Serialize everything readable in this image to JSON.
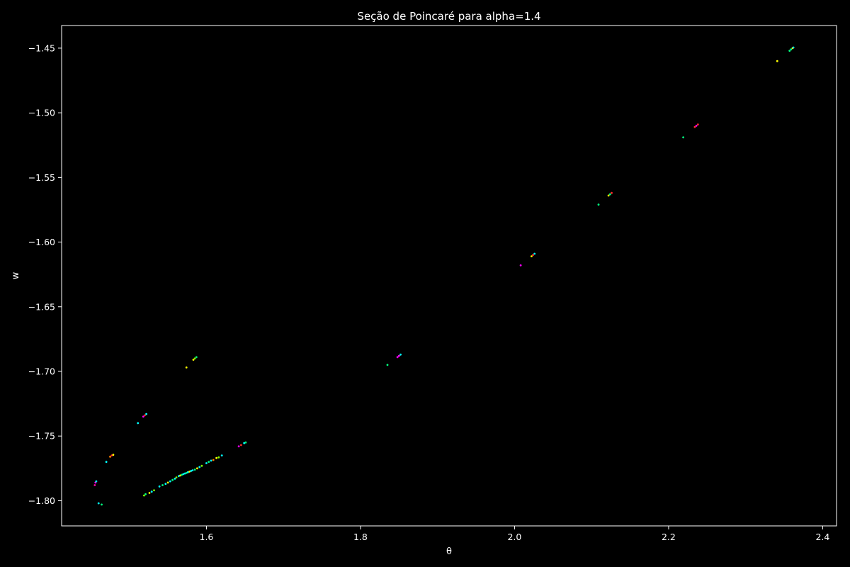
{
  "chart_data": {
    "type": "scatter",
    "title": "Seção de Poincaré para alpha=1.4",
    "xlabel": "θ",
    "ylabel": "w",
    "xlim": [
      1.412,
      2.418
    ],
    "ylim": [
      -1.8195,
      -1.4325
    ],
    "x_ticks": [
      1.6,
      1.8,
      2.0,
      2.2,
      2.4
    ],
    "x_tick_labels": [
      "1.6",
      "1.8",
      "2.0",
      "2.2",
      "2.4"
    ],
    "y_ticks": [
      -1.8,
      -1.75,
      -1.7,
      -1.65,
      -1.6,
      -1.55,
      -1.5,
      -1.45
    ],
    "y_tick_labels": [
      "−1.80",
      "−1.75",
      "−1.70",
      "−1.65",
      "−1.60",
      "−1.55",
      "−1.50",
      "−1.45"
    ],
    "grid": false,
    "background": "#000000",
    "axis_color": "#ffffff",
    "point_colors": [
      "#ffff00",
      "#00ff7f",
      "#00ffff",
      "#ff00ff",
      "#ff2a2a",
      "#7fff00",
      "#ff7f00",
      "#ff00aa"
    ],
    "points": [
      [
        2.357,
        -1.452,
        1
      ],
      [
        2.359,
        -1.451,
        1
      ],
      [
        2.361,
        -1.45,
        0
      ],
      [
        2.362,
        -1.4495,
        2
      ],
      [
        2.341,
        -1.46,
        0
      ],
      [
        2.234,
        -1.511,
        4
      ],
      [
        2.236,
        -1.51,
        3
      ],
      [
        2.238,
        -1.509,
        4
      ],
      [
        2.219,
        -1.519,
        1
      ],
      [
        2.122,
        -1.564,
        0
      ],
      [
        2.124,
        -1.563,
        1
      ],
      [
        2.126,
        -1.562,
        4
      ],
      [
        2.109,
        -1.571,
        1
      ],
      [
        2.022,
        -1.611,
        0
      ],
      [
        2.024,
        -1.61,
        4
      ],
      [
        2.026,
        -1.609,
        2
      ],
      [
        2.008,
        -1.618,
        3
      ],
      [
        1.848,
        -1.689,
        3
      ],
      [
        1.85,
        -1.688,
        3
      ],
      [
        1.852,
        -1.687,
        2
      ],
      [
        1.835,
        -1.695,
        1
      ],
      [
        1.583,
        -1.691,
        0
      ],
      [
        1.585,
        -1.69,
        5
      ],
      [
        1.587,
        -1.689,
        1
      ],
      [
        1.574,
        -1.697,
        0
      ],
      [
        1.518,
        -1.735,
        3
      ],
      [
        1.52,
        -1.734,
        4
      ],
      [
        1.522,
        -1.733,
        2
      ],
      [
        1.511,
        -1.74,
        2
      ],
      [
        1.475,
        -1.766,
        6
      ],
      [
        1.477,
        -1.765,
        4
      ],
      [
        1.479,
        -1.7645,
        0
      ],
      [
        1.47,
        -1.77,
        2
      ],
      [
        1.456,
        -1.786,
        3
      ],
      [
        1.457,
        -1.785,
        2
      ],
      [
        1.455,
        -1.788,
        7
      ],
      [
        1.46,
        -1.802,
        2
      ],
      [
        1.464,
        -1.803,
        1
      ],
      [
        1.519,
        -1.796,
        5
      ],
      [
        1.521,
        -1.795,
        1
      ],
      [
        1.526,
        -1.794,
        0
      ],
      [
        1.529,
        -1.793,
        2
      ],
      [
        1.532,
        -1.792,
        5
      ],
      [
        1.539,
        -1.789,
        2
      ],
      [
        1.543,
        -1.788,
        1
      ],
      [
        1.547,
        -1.787,
        2
      ],
      [
        1.55,
        -1.786,
        0
      ],
      [
        1.553,
        -1.785,
        2
      ],
      [
        1.556,
        -1.784,
        1
      ],
      [
        1.559,
        -1.783,
        2
      ],
      [
        1.561,
        -1.782,
        5
      ],
      [
        1.564,
        -1.781,
        2
      ],
      [
        1.566,
        -1.7805,
        0
      ],
      [
        1.568,
        -1.78,
        1
      ],
      [
        1.57,
        -1.7795,
        2
      ],
      [
        1.572,
        -1.779,
        2
      ],
      [
        1.574,
        -1.7785,
        1
      ],
      [
        1.576,
        -1.778,
        2
      ],
      [
        1.578,
        -1.7775,
        0
      ],
      [
        1.58,
        -1.777,
        2
      ],
      [
        1.582,
        -1.7765,
        2
      ],
      [
        1.585,
        -1.776,
        1
      ],
      [
        1.588,
        -1.775,
        0
      ],
      [
        1.591,
        -1.774,
        2
      ],
      [
        1.594,
        -1.773,
        5
      ],
      [
        1.6,
        -1.771,
        2
      ],
      [
        1.603,
        -1.77,
        1
      ],
      [
        1.606,
        -1.769,
        2
      ],
      [
        1.609,
        -1.7685,
        6
      ],
      [
        1.613,
        -1.767,
        0
      ],
      [
        1.616,
        -1.7665,
        5
      ],
      [
        1.62,
        -1.765,
        2
      ],
      [
        1.642,
        -1.758,
        3
      ],
      [
        1.645,
        -1.757,
        4
      ],
      [
        1.649,
        -1.7555,
        2
      ],
      [
        1.651,
        -1.755,
        1
      ]
    ]
  }
}
